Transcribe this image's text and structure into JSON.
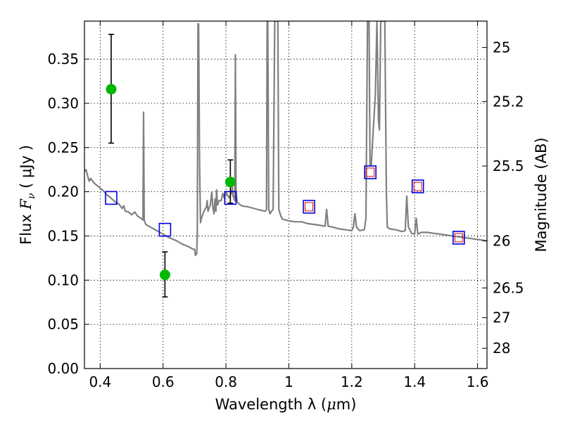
{
  "chart_data": {
    "type": "line",
    "xlabel_text": "Wavelength  λ (",
    "xlabel_unit": "μ",
    "xlabel_tail": "m)",
    "ylabel_text": "Flux  ",
    "ylabel_math": "F",
    "ylabel_sub": "ν",
    "ylabel_unit": "  ( μJy )",
    "y2label": "Magnitude (AB)",
    "xlim": [
      0.35,
      1.63
    ],
    "ylim": [
      0.0,
      0.393
    ],
    "grid": true,
    "x_ticks": [
      0.4,
      0.6,
      0.8,
      1.0,
      1.2,
      1.4,
      1.6
    ],
    "x_tick_labels": [
      "0.4",
      "0.6",
      "0.8",
      "1",
      "1.2",
      "1.4",
      "1.6"
    ],
    "y_ticks": [
      0.0,
      0.05,
      0.1,
      0.15,
      0.2,
      0.25,
      0.3,
      0.35
    ],
    "y_tick_labels": [
      "0.00",
      "0.05",
      "0.10",
      "0.15",
      "0.20",
      "0.25",
      "0.30",
      "0.35"
    ],
    "mag_ticks": [
      25,
      25.2,
      25.5,
      26,
      26.5,
      27,
      28
    ],
    "mag_tick_labels": [
      "25",
      "25.2",
      "25.5",
      "26",
      "26.5",
      "27",
      "28"
    ],
    "spectrum": {
      "color": "#808080",
      "points": [
        [
          0.35,
          0.223
        ],
        [
          0.355,
          0.225
        ],
        [
          0.36,
          0.218
        ],
        [
          0.365,
          0.212
        ],
        [
          0.37,
          0.215
        ],
        [
          0.38,
          0.21
        ],
        [
          0.39,
          0.207
        ],
        [
          0.4,
          0.204
        ],
        [
          0.41,
          0.201
        ],
        [
          0.42,
          0.197
        ],
        [
          0.43,
          0.194
        ],
        [
          0.44,
          0.191
        ],
        [
          0.45,
          0.188
        ],
        [
          0.46,
          0.186
        ],
        [
          0.47,
          0.181
        ],
        [
          0.475,
          0.184
        ],
        [
          0.48,
          0.178
        ],
        [
          0.49,
          0.177
        ],
        [
          0.5,
          0.174
        ],
        [
          0.51,
          0.177
        ],
        [
          0.52,
          0.172
        ],
        [
          0.53,
          0.17
        ],
        [
          0.536,
          0.168
        ],
        [
          0.538,
          0.29
        ],
        [
          0.54,
          0.168
        ],
        [
          0.545,
          0.163
        ],
        [
          0.56,
          0.16
        ],
        [
          0.58,
          0.156
        ],
        [
          0.6,
          0.152
        ],
        [
          0.62,
          0.148
        ],
        [
          0.64,
          0.145
        ],
        [
          0.66,
          0.141
        ],
        [
          0.68,
          0.138
        ],
        [
          0.695,
          0.135
        ],
        [
          0.7,
          0.135
        ],
        [
          0.703,
          0.128
        ],
        [
          0.707,
          0.13
        ],
        [
          0.709,
          0.155
        ],
        [
          0.711,
          0.39
        ],
        [
          0.713,
          0.39
        ],
        [
          0.716,
          0.23
        ],
        [
          0.719,
          0.165
        ],
        [
          0.722,
          0.17
        ],
        [
          0.73,
          0.178
        ],
        [
          0.738,
          0.183
        ],
        [
          0.74,
          0.19
        ],
        [
          0.743,
          0.178
        ],
        [
          0.75,
          0.185
        ],
        [
          0.755,
          0.2
        ],
        [
          0.758,
          0.183
        ],
        [
          0.762,
          0.175
        ],
        [
          0.765,
          0.192
        ],
        [
          0.768,
          0.178
        ],
        [
          0.77,
          0.202
        ],
        [
          0.773,
          0.185
        ],
        [
          0.778,
          0.19
        ],
        [
          0.785,
          0.19
        ],
        [
          0.79,
          0.198
        ],
        [
          0.795,
          0.193
        ],
        [
          0.8,
          0.2
        ],
        [
          0.805,
          0.196
        ],
        [
          0.81,
          0.193
        ],
        [
          0.815,
          0.197
        ],
        [
          0.818,
          0.2
        ],
        [
          0.82,
          0.205
        ],
        [
          0.822,
          0.196
        ],
        [
          0.828,
          0.19
        ],
        [
          0.83,
          0.355
        ],
        [
          0.832,
          0.2
        ],
        [
          0.836,
          0.188
        ],
        [
          0.85,
          0.184
        ],
        [
          0.87,
          0.183
        ],
        [
          0.89,
          0.181
        ],
        [
          0.91,
          0.179
        ],
        [
          0.925,
          0.178
        ],
        [
          0.929,
          0.18
        ],
        [
          0.931,
          0.393
        ],
        [
          0.933,
          0.393
        ],
        [
          0.936,
          0.18
        ],
        [
          0.94,
          0.175
        ],
        [
          0.945,
          0.178
        ],
        [
          0.95,
          0.18
        ],
        [
          0.955,
          0.393
        ],
        [
          0.958,
          0.393
        ],
        [
          0.962,
          0.393
        ],
        [
          0.965,
          0.393
        ],
        [
          0.968,
          0.18
        ],
        [
          0.975,
          0.172
        ],
        [
          0.98,
          0.169
        ],
        [
          0.99,
          0.168
        ],
        [
          1.0,
          0.167
        ],
        [
          1.02,
          0.166
        ],
        [
          1.04,
          0.166
        ],
        [
          1.06,
          0.164
        ],
        [
          1.08,
          0.163
        ],
        [
          1.1,
          0.162
        ],
        [
          1.115,
          0.161
        ],
        [
          1.12,
          0.18
        ],
        [
          1.125,
          0.161
        ],
        [
          1.14,
          0.16
        ],
        [
          1.16,
          0.158
        ],
        [
          1.18,
          0.157
        ],
        [
          1.2,
          0.156
        ],
        [
          1.205,
          0.16
        ],
        [
          1.21,
          0.175
        ],
        [
          1.215,
          0.16
        ],
        [
          1.225,
          0.156
        ],
        [
          1.24,
          0.157
        ],
        [
          1.245,
          0.17
        ],
        [
          1.25,
          0.393
        ],
        [
          1.255,
          0.393
        ],
        [
          1.258,
          0.23
        ],
        [
          1.262,
          0.23
        ],
        [
          1.265,
          0.25
        ],
        [
          1.275,
          0.31
        ],
        [
          1.28,
          0.393
        ],
        [
          1.285,
          0.28
        ],
        [
          1.288,
          0.27
        ],
        [
          1.292,
          0.393
        ],
        [
          1.305,
          0.393
        ],
        [
          1.31,
          0.2
        ],
        [
          1.313,
          0.16
        ],
        [
          1.32,
          0.158
        ],
        [
          1.34,
          0.157
        ],
        [
          1.36,
          0.155
        ],
        [
          1.37,
          0.156
        ],
        [
          1.375,
          0.195
        ],
        [
          1.38,
          0.16
        ],
        [
          1.39,
          0.153
        ],
        [
          1.4,
          0.152
        ],
        [
          1.405,
          0.17
        ],
        [
          1.41,
          0.152
        ],
        [
          1.42,
          0.154
        ],
        [
          1.44,
          0.154
        ],
        [
          1.46,
          0.153
        ],
        [
          1.48,
          0.152
        ],
        [
          1.5,
          0.151
        ],
        [
          1.52,
          0.15
        ],
        [
          1.54,
          0.149
        ],
        [
          1.56,
          0.148
        ],
        [
          1.58,
          0.147
        ],
        [
          1.6,
          0.146
        ],
        [
          1.62,
          0.145
        ],
        [
          1.63,
          0.144
        ]
      ]
    },
    "measurements": {
      "color": "#00b800",
      "errorbar_color": "#000000",
      "points": [
        {
          "x": 0.435,
          "y": 0.316,
          "yerr_low": 0.255,
          "yerr_high": 0.378
        },
        {
          "x": 0.606,
          "y": 0.106,
          "yerr_low": 0.081,
          "yerr_high": 0.132
        },
        {
          "x": 0.814,
          "y": 0.211,
          "yerr_low": 0.187,
          "yerr_high": 0.236
        }
      ]
    },
    "model_points": {
      "outer_color": "#0000dd",
      "inner_color": "#dd0000",
      "points": [
        {
          "x": 0.435,
          "y": 0.193,
          "inner": false
        },
        {
          "x": 0.606,
          "y": 0.157,
          "inner": false
        },
        {
          "x": 0.814,
          "y": 0.193,
          "inner": false
        },
        {
          "x": 1.064,
          "y": 0.183,
          "inner": true
        },
        {
          "x": 1.259,
          "y": 0.222,
          "inner": true
        },
        {
          "x": 1.41,
          "y": 0.206,
          "inner": true
        },
        {
          "x": 1.54,
          "y": 0.148,
          "inner": true
        }
      ]
    }
  }
}
